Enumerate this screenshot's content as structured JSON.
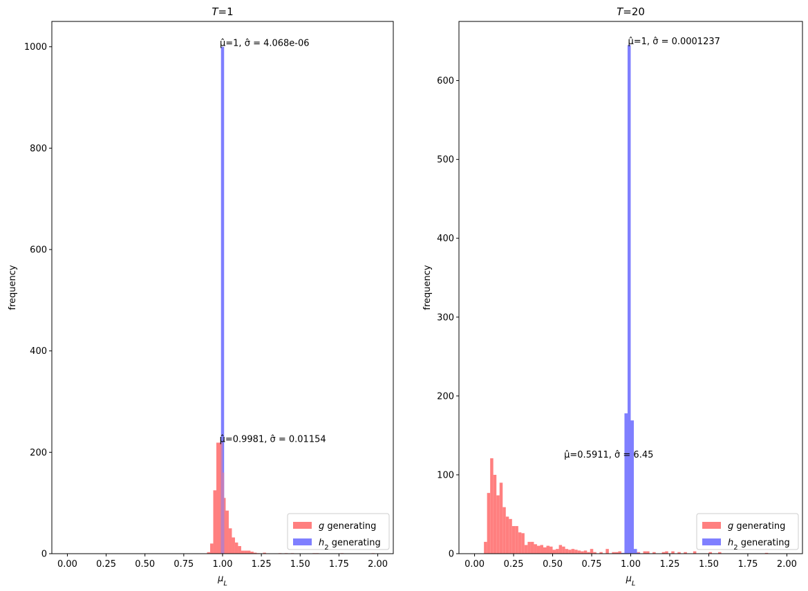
{
  "chart_data": [
    {
      "type": "histogram",
      "title": "T=1",
      "xlabel": "μ_L",
      "ylabel": "frequency",
      "xlim": [
        -0.1,
        2.1
      ],
      "ylim": [
        0,
        1050
      ],
      "xticks": [
        "0.00",
        "0.25",
        "0.50",
        "0.75",
        "1.00",
        "1.25",
        "1.50",
        "1.75",
        "2.00"
      ],
      "yticks": [
        "0",
        "200",
        "400",
        "600",
        "800",
        "1000"
      ],
      "legend_position": "lower-right",
      "series": [
        {
          "name": "g generating",
          "color": "#ff7f7f",
          "bins": [
            {
              "x0": 0.9,
              "x1": 0.92,
              "y": 3
            },
            {
              "x0": 0.92,
              "x1": 0.94,
              "y": 20
            },
            {
              "x0": 0.94,
              "x1": 0.96,
              "y": 125
            },
            {
              "x0": 0.96,
              "x1": 0.98,
              "y": 219
            },
            {
              "x0": 0.98,
              "x1": 1.0,
              "y": 219
            },
            {
              "x0": 1.0,
              "x1": 1.02,
              "y": 110
            },
            {
              "x0": 1.02,
              "x1": 1.04,
              "y": 85
            },
            {
              "x0": 1.04,
              "x1": 1.06,
              "y": 50
            },
            {
              "x0": 1.06,
              "x1": 1.08,
              "y": 32
            },
            {
              "x0": 1.08,
              "x1": 1.1,
              "y": 22
            },
            {
              "x0": 1.1,
              "x1": 1.12,
              "y": 15
            },
            {
              "x0": 1.12,
              "x1": 1.14,
              "y": 6
            },
            {
              "x0": 1.14,
              "x1": 1.16,
              "y": 6
            },
            {
              "x0": 1.16,
              "x1": 1.18,
              "y": 6
            },
            {
              "x0": 1.18,
              "x1": 1.2,
              "y": 4
            },
            {
              "x0": 1.2,
              "x1": 1.22,
              "y": 2
            },
            {
              "x0": 1.22,
              "x1": 1.24,
              "y": 1
            },
            {
              "x0": 1.26,
              "x1": 1.28,
              "y": 2
            },
            {
              "x0": 1.36,
              "x1": 1.38,
              "y": 1
            },
            {
              "x0": 1.4,
              "x1": 1.42,
              "y": 1
            },
            {
              "x0": 1.44,
              "x1": 1.46,
              "y": 1
            },
            {
              "x0": 1.58,
              "x1": 1.6,
              "y": 1
            },
            {
              "x0": 1.6,
              "x1": 1.62,
              "y": 1
            },
            {
              "x0": 1.76,
              "x1": 1.78,
              "y": 1
            },
            {
              "x0": 1.96,
              "x1": 1.98,
              "y": 1
            }
          ]
        },
        {
          "name": "h_2 generating",
          "color": "#7f7fff",
          "bins": [
            {
              "x0": 0.99,
              "x1": 1.01,
              "y": 1000
            }
          ]
        }
      ],
      "overlap_bins": [
        {
          "x0": 0.99,
          "x1": 1.0,
          "y": 219
        },
        {
          "x0": 1.0,
          "x1": 1.01,
          "y": 160
        }
      ],
      "annotations": [
        {
          "x": 1.0,
          "y": 1000,
          "text": "μ̂=1, σ̂ = 4.068e-06"
        },
        {
          "x": 0.9981,
          "y": 219,
          "text": "μ̂=0.9981, σ̂ = 0.01154"
        }
      ]
    },
    {
      "type": "histogram",
      "title": "T=20",
      "xlabel": "μ_L",
      "ylabel": "frequency",
      "xlim": [
        -0.1,
        2.1
      ],
      "ylim": [
        0,
        675
      ],
      "xticks": [
        "0.00",
        "0.25",
        "0.50",
        "0.75",
        "1.00",
        "1.25",
        "1.50",
        "1.75",
        "2.00"
      ],
      "yticks": [
        "0",
        "100",
        "200",
        "300",
        "400",
        "500",
        "600"
      ],
      "legend_position": "lower-right",
      "series": [
        {
          "name": "g generating",
          "color": "#ff7f7f",
          "bins": [
            {
              "x0": 0.06,
              "x1": 0.08,
              "y": 15
            },
            {
              "x0": 0.08,
              "x1": 0.1,
              "y": 77
            },
            {
              "x0": 0.1,
              "x1": 0.12,
              "y": 121
            },
            {
              "x0": 0.12,
              "x1": 0.14,
              "y": 100
            },
            {
              "x0": 0.14,
              "x1": 0.16,
              "y": 74
            },
            {
              "x0": 0.16,
              "x1": 0.18,
              "y": 90
            },
            {
              "x0": 0.18,
              "x1": 0.2,
              "y": 59
            },
            {
              "x0": 0.2,
              "x1": 0.22,
              "y": 47
            },
            {
              "x0": 0.22,
              "x1": 0.24,
              "y": 44
            },
            {
              "x0": 0.24,
              "x1": 0.26,
              "y": 35
            },
            {
              "x0": 0.26,
              "x1": 0.28,
              "y": 35
            },
            {
              "x0": 0.28,
              "x1": 0.3,
              "y": 27
            },
            {
              "x0": 0.3,
              "x1": 0.32,
              "y": 26
            },
            {
              "x0": 0.32,
              "x1": 0.34,
              "y": 11
            },
            {
              "x0": 0.34,
              "x1": 0.36,
              "y": 15
            },
            {
              "x0": 0.36,
              "x1": 0.38,
              "y": 15
            },
            {
              "x0": 0.38,
              "x1": 0.4,
              "y": 12
            },
            {
              "x0": 0.4,
              "x1": 0.42,
              "y": 10
            },
            {
              "x0": 0.42,
              "x1": 0.44,
              "y": 11
            },
            {
              "x0": 0.44,
              "x1": 0.46,
              "y": 8
            },
            {
              "x0": 0.46,
              "x1": 0.48,
              "y": 10
            },
            {
              "x0": 0.48,
              "x1": 0.5,
              "y": 9
            },
            {
              "x0": 0.5,
              "x1": 0.52,
              "y": 5
            },
            {
              "x0": 0.52,
              "x1": 0.54,
              "y": 6
            },
            {
              "x0": 0.54,
              "x1": 0.56,
              "y": 11
            },
            {
              "x0": 0.56,
              "x1": 0.58,
              "y": 9
            },
            {
              "x0": 0.58,
              "x1": 0.6,
              "y": 6
            },
            {
              "x0": 0.6,
              "x1": 0.62,
              "y": 5
            },
            {
              "x0": 0.62,
              "x1": 0.64,
              "y": 6
            },
            {
              "x0": 0.64,
              "x1": 0.66,
              "y": 5
            },
            {
              "x0": 0.66,
              "x1": 0.68,
              "y": 4
            },
            {
              "x0": 0.68,
              "x1": 0.7,
              "y": 3
            },
            {
              "x0": 0.7,
              "x1": 0.72,
              "y": 4
            },
            {
              "x0": 0.72,
              "x1": 0.74,
              "y": 2
            },
            {
              "x0": 0.74,
              "x1": 0.76,
              "y": 6
            },
            {
              "x0": 0.76,
              "x1": 0.78,
              "y": 2
            },
            {
              "x0": 0.8,
              "x1": 0.82,
              "y": 2
            },
            {
              "x0": 0.84,
              "x1": 0.86,
              "y": 6
            },
            {
              "x0": 0.88,
              "x1": 0.9,
              "y": 2
            },
            {
              "x0": 0.9,
              "x1": 0.92,
              "y": 2
            },
            {
              "x0": 0.92,
              "x1": 0.94,
              "y": 3
            },
            {
              "x0": 1.04,
              "x1": 1.06,
              "y": 2
            },
            {
              "x0": 1.08,
              "x1": 1.1,
              "y": 3
            },
            {
              "x0": 1.1,
              "x1": 1.12,
              "y": 3
            },
            {
              "x0": 1.14,
              "x1": 1.16,
              "y": 2
            },
            {
              "x0": 1.2,
              "x1": 1.22,
              "y": 2
            },
            {
              "x0": 1.22,
              "x1": 1.24,
              "y": 3
            },
            {
              "x0": 1.26,
              "x1": 1.28,
              "y": 3
            },
            {
              "x0": 1.3,
              "x1": 1.32,
              "y": 2
            },
            {
              "x0": 1.34,
              "x1": 1.36,
              "y": 2
            },
            {
              "x0": 1.4,
              "x1": 1.42,
              "y": 3
            },
            {
              "x0": 1.5,
              "x1": 1.52,
              "y": 2
            },
            {
              "x0": 1.56,
              "x1": 1.58,
              "y": 2
            },
            {
              "x0": 1.86,
              "x1": 1.88,
              "y": 1
            }
          ]
        },
        {
          "name": "h_2 generating",
          "color": "#7f7fff",
          "bins": [
            {
              "x0": 0.94,
              "x1": 0.96,
              "y": 1
            },
            {
              "x0": 0.96,
              "x1": 0.98,
              "y": 178
            },
            {
              "x0": 0.98,
              "x1": 1.0,
              "y": 645
            },
            {
              "x0": 1.0,
              "x1": 1.02,
              "y": 169
            },
            {
              "x0": 1.02,
              "x1": 1.04,
              "y": 6
            },
            {
              "x0": 1.04,
              "x1": 1.06,
              "y": 1
            }
          ]
        }
      ],
      "overlap_bins": [],
      "annotations": [
        {
          "x": 1.0,
          "y": 645,
          "text": "μ̂=1, σ̂ = 0.0001237"
        },
        {
          "x": 0.5911,
          "y": 121,
          "text": "μ̂=0.5911, σ̂ = 6.45"
        }
      ]
    }
  ]
}
